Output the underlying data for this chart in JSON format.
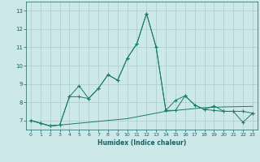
{
  "xlabel": "Humidex (Indice chaleur)",
  "x": [
    0,
    1,
    2,
    3,
    4,
    5,
    6,
    7,
    8,
    9,
    10,
    11,
    12,
    13,
    14,
    15,
    16,
    17,
    18,
    19,
    20,
    21,
    22,
    23
  ],
  "line1": [
    7.0,
    6.85,
    6.7,
    6.75,
    6.8,
    6.85,
    6.9,
    6.95,
    7.0,
    7.05,
    7.1,
    7.2,
    7.3,
    7.4,
    7.5,
    7.55,
    7.6,
    7.65,
    7.7,
    7.72,
    7.74,
    7.75,
    7.76,
    7.77
  ],
  "line2": [
    7.0,
    6.85,
    6.7,
    6.75,
    8.3,
    8.9,
    8.2,
    8.75,
    9.5,
    9.2,
    10.4,
    11.2,
    12.85,
    11.0,
    7.55,
    8.1,
    8.35,
    7.85,
    7.6,
    7.8,
    7.5,
    7.5,
    6.9,
    7.4
  ],
  "line3": [
    7.0,
    6.85,
    6.7,
    6.75,
    8.3,
    8.3,
    8.2,
    8.75,
    9.5,
    9.2,
    10.4,
    11.2,
    12.85,
    11.0,
    7.55,
    7.55,
    8.35,
    7.85,
    7.6,
    7.55,
    7.5,
    7.5,
    7.5,
    7.4
  ],
  "ylim": [
    6.5,
    13.5
  ],
  "xlim": [
    -0.5,
    23.5
  ],
  "yticks": [
    7,
    8,
    9,
    10,
    11,
    12,
    13
  ],
  "xticks": [
    0,
    1,
    2,
    3,
    4,
    5,
    6,
    7,
    8,
    9,
    10,
    11,
    12,
    13,
    14,
    15,
    16,
    17,
    18,
    19,
    20,
    21,
    22,
    23
  ],
  "line_color": "#1a7a6e",
  "bg_color": "#cce8e8",
  "grid_color": "#aacccc",
  "tick_color": "#1a6060",
  "label_color": "#1a6060"
}
